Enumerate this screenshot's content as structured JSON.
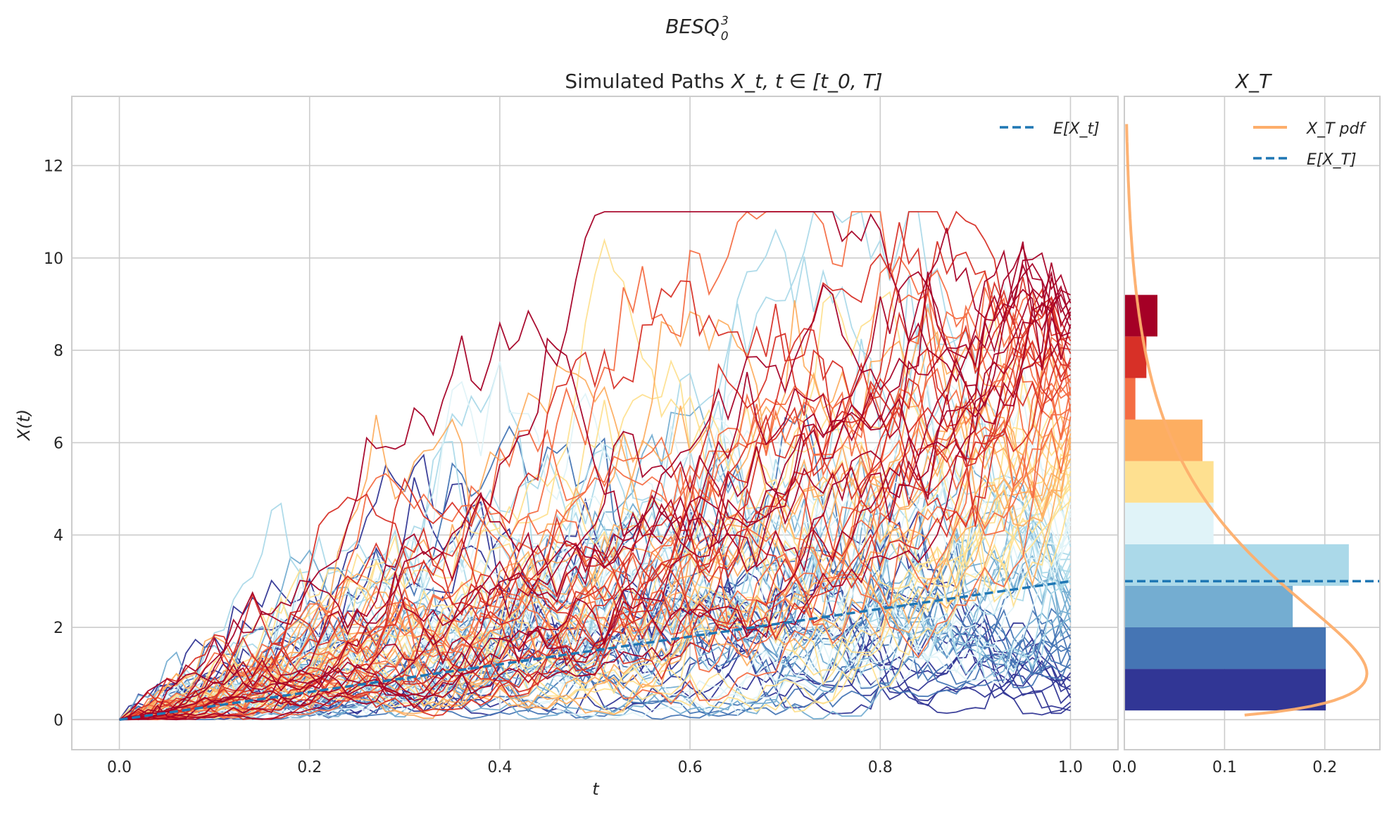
{
  "figure": {
    "suptitle": "BESQ",
    "suptitle_sup": "3",
    "suptitle_sub": "0"
  },
  "colors": {
    "mean": "#1f77b4",
    "pdf": "#fdae6b",
    "grid": "#cccccc",
    "frame": "#cccccc",
    "palette": [
      "#313695",
      "#4575b4",
      "#74add1",
      "#abd9e9",
      "#e0f3f8",
      "#fee090",
      "#fdae61",
      "#f46d43",
      "#d73027",
      "#a50026"
    ]
  },
  "chart_data": [
    {
      "type": "line",
      "title_text": "Simulated Paths",
      "title_math": "X_t, t ∈ [t_0, T]",
      "xlabel": "t",
      "ylabel": "X(t)",
      "xlim": [
        -0.05,
        1.05
      ],
      "ylim": [
        -0.65,
        13.5
      ],
      "x_ticks": [
        0.0,
        0.2,
        0.4,
        0.6,
        0.8,
        1.0
      ],
      "x_tick_labels": [
        "0.0",
        "0.2",
        "0.4",
        "0.6",
        "0.8",
        "1.0"
      ],
      "y_ticks": [
        0,
        2,
        4,
        6,
        8,
        10,
        12
      ],
      "y_tick_labels": [
        "0",
        "2",
        "4",
        "6",
        "8",
        "10",
        "12"
      ],
      "grid": true,
      "legend": {
        "position": "top-right",
        "entries": [
          {
            "label": "E[X_t]",
            "style": "dashed"
          }
        ]
      },
      "paths": {
        "count": 100,
        "steps": 100,
        "t0": 0,
        "T": 1,
        "x0": 0,
        "dimension": 3,
        "terminal_range": [
          0.2,
          9.2
        ]
      },
      "series": [
        {
          "name": "E[X_t]",
          "x": [
            0,
            1
          ],
          "y": [
            0,
            3
          ]
        }
      ]
    },
    {
      "type": "bar",
      "orientation": "horizontal",
      "title_text": "X_T",
      "xlim": [
        0,
        0.255
      ],
      "ylim": [
        -0.65,
        13.5
      ],
      "x_ticks": [
        0.0,
        0.1,
        0.2
      ],
      "x_tick_labels": [
        "0.0",
        "0.1",
        "0.2"
      ],
      "grid": true,
      "legend": {
        "position": "top-right",
        "entries": [
          {
            "label": "X_T pdf",
            "style": "solid"
          },
          {
            "label": "E[X_T]",
            "style": "dashed"
          }
        ]
      },
      "bins": [
        {
          "y0": 0.2,
          "y1": 1.1,
          "density": 0.201
        },
        {
          "y0": 1.1,
          "y1": 2.0,
          "density": 0.201
        },
        {
          "y0": 2.0,
          "y1": 2.9,
          "density": 0.168
        },
        {
          "y0": 2.9,
          "y1": 3.8,
          "density": 0.224
        },
        {
          "y0": 3.8,
          "y1": 4.7,
          "density": 0.089
        },
        {
          "y0": 4.7,
          "y1": 5.6,
          "density": 0.089
        },
        {
          "y0": 5.6,
          "y1": 6.5,
          "density": 0.078
        },
        {
          "y0": 6.5,
          "y1": 7.4,
          "density": 0.011
        },
        {
          "y0": 7.4,
          "y1": 8.3,
          "density": 0.022
        },
        {
          "y0": 8.3,
          "y1": 9.2,
          "density": 0.033
        }
      ],
      "pdf": {
        "name": "X_T pdf",
        "y_range": [
          0.1,
          12.9
        ]
      },
      "mean": {
        "name": "E[X_T]",
        "value": 3
      }
    }
  ]
}
